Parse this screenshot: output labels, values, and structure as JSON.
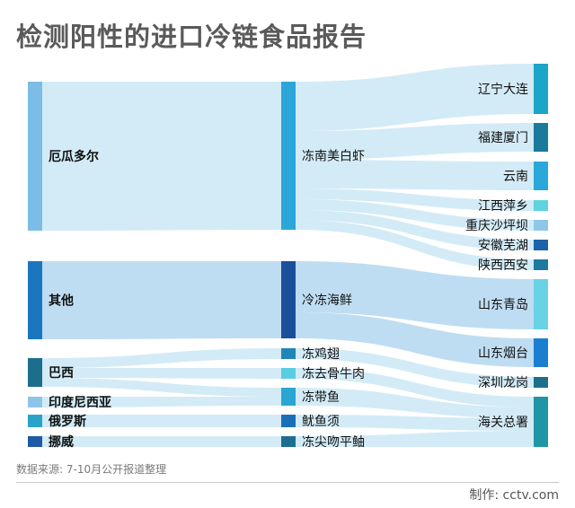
{
  "title": "检测阳性的进口冷链食品报告",
  "source": "数据来源: 7-10月公开报道整理",
  "credit": "制作: cctv.com",
  "colors": {
    "link": "#c4e4f3",
    "link_alt": "#a9d2ee",
    "divider": "#c9c9c9"
  },
  "nodes": {
    "origin": [
      {
        "id": "ecuador",
        "label": "厄瓜多尔",
        "color": "#7bbde6"
      },
      {
        "id": "other",
        "label": "其他",
        "color": "#1b76c0"
      },
      {
        "id": "brazil",
        "label": "巴西",
        "color": "#1c6f8c"
      },
      {
        "id": "indonesia",
        "label": "印度尼西亚",
        "color": "#8dc5ea"
      },
      {
        "id": "russia",
        "label": "俄罗斯",
        "color": "#29a3c9"
      },
      {
        "id": "norway",
        "label": "挪威",
        "color": "#1f5aa6"
      }
    ],
    "product": [
      {
        "id": "shrimp",
        "label": "冻南美白虾",
        "color": "#2ba6d8"
      },
      {
        "id": "seafood",
        "label": "冷冻海鲜",
        "color": "#1b4f9c"
      },
      {
        "id": "chicken",
        "label": "冻鸡翅",
        "color": "#1f86b8"
      },
      {
        "id": "beef",
        "label": "冻去骨牛肉",
        "color": "#59cde1"
      },
      {
        "id": "hairtail",
        "label": "冻带鱼",
        "color": "#2aa6d2"
      },
      {
        "id": "squid",
        "label": "鱿鱼须",
        "color": "#1b6fb6"
      },
      {
        "id": "pomfret",
        "label": "冻尖吻平鲉",
        "color": "#1b6e8f"
      }
    ],
    "destination": [
      {
        "id": "dalian",
        "label": "辽宁大连",
        "color": "#19a6c9"
      },
      {
        "id": "xiamen",
        "label": "福建厦门",
        "color": "#1a7a9b"
      },
      {
        "id": "yunnan",
        "label": "云南",
        "color": "#2aa8dc"
      },
      {
        "id": "pingxiang",
        "label": "江西萍乡",
        "color": "#5fd2df"
      },
      {
        "id": "chongqing",
        "label": "重庆沙坪坝",
        "color": "#8ec6e8"
      },
      {
        "id": "wuhu",
        "label": "安徽芜湖",
        "color": "#1c62a8"
      },
      {
        "id": "xian",
        "label": "陕西西安",
        "color": "#1c7aa0"
      },
      {
        "id": "qingdao",
        "label": "山东青岛",
        "color": "#68d3e5"
      },
      {
        "id": "yantai",
        "label": "山东烟台",
        "color": "#1b7fd0"
      },
      {
        "id": "shenzhen",
        "label": "深圳龙岗",
        "color": "#1c6f8a"
      },
      {
        "id": "customs",
        "label": "海关总署",
        "color": "#1f96a6"
      }
    ]
  }
}
